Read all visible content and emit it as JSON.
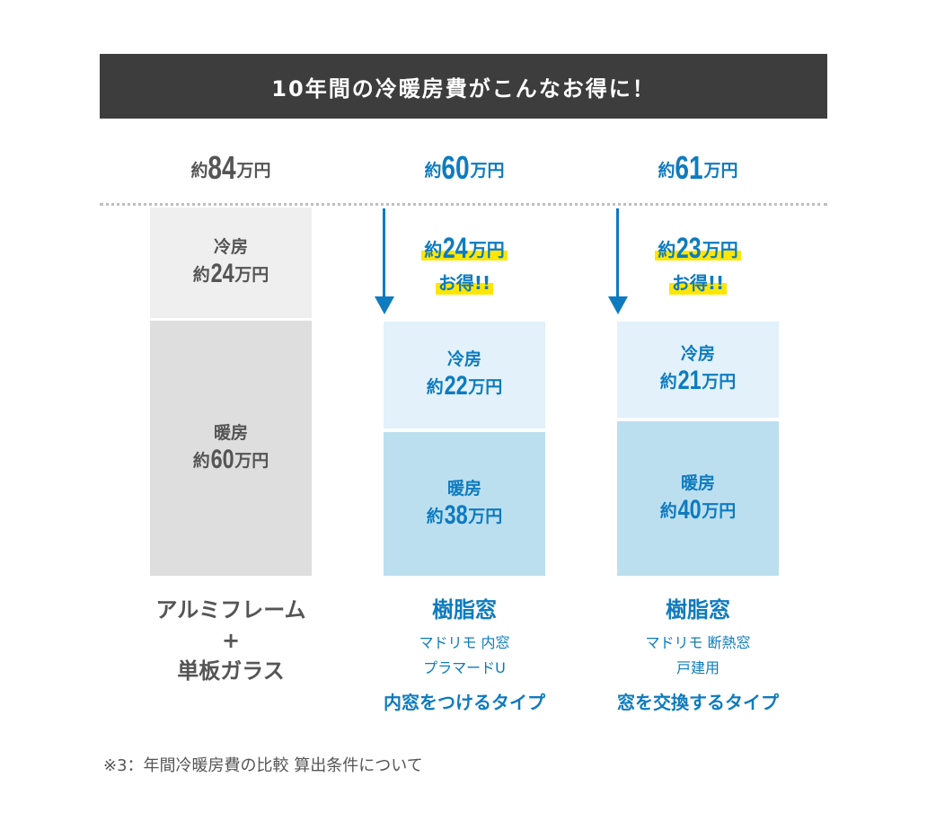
{
  "banner": {
    "title": "10年間の冷暖房費がこんなお得に！"
  },
  "colors": {
    "gray_text": "#555555",
    "blue_text": "#0e7bbf",
    "gray_cooling": "#efefef",
    "gray_heating": "#dedede",
    "blue_cooling": "#e2f1fa",
    "blue_heating": "#bcdff0",
    "banner_bg": "#3d3d3d",
    "highlight": "#ffe600"
  },
  "units": {
    "pre": "約",
    "suf": "万円"
  },
  "chart_data": {
    "type": "bar",
    "stacked": true,
    "categories": [
      "アルミフレーム + 単板ガラス",
      "樹脂窓 マドリモ 内窓 プラマードU",
      "樹脂窓 マドリモ 断熱窓 戸建用"
    ],
    "series": [
      {
        "name": "冷房",
        "values": [
          24,
          22,
          21
        ]
      },
      {
        "name": "暖房",
        "values": [
          60,
          38,
          40
        ]
      }
    ],
    "totals": [
      84,
      60,
      61
    ],
    "savings": [
      null,
      24,
      23
    ],
    "unit": "万円"
  },
  "columns": [
    {
      "total": "84",
      "cooling": {
        "label": "冷房",
        "value": "24"
      },
      "heating": {
        "label": "暖房",
        "value": "60"
      },
      "name_lines": [
        "アルミフレーム",
        "+",
        "単板ガラス"
      ]
    },
    {
      "total": "60",
      "saving": {
        "value": "24",
        "suffix": "お得!!"
      },
      "cooling": {
        "label": "冷房",
        "value": "22"
      },
      "heating": {
        "label": "暖房",
        "value": "38"
      },
      "name": "樹脂窓",
      "sub_lines": [
        "マドリモ 内窓",
        "プラマードU"
      ],
      "type": "内窓をつけるタイプ"
    },
    {
      "total": "61",
      "saving": {
        "value": "23",
        "suffix": "お得!!"
      },
      "cooling": {
        "label": "冷房",
        "value": "21"
      },
      "heating": {
        "label": "暖房",
        "value": "40"
      },
      "name": "樹脂窓",
      "sub_lines": [
        "マドリモ 断熱窓",
        "戸建用"
      ],
      "type": "窓を交換するタイプ"
    }
  ],
  "footnote": "※3：年間冷暖房費の比較 算出条件について"
}
